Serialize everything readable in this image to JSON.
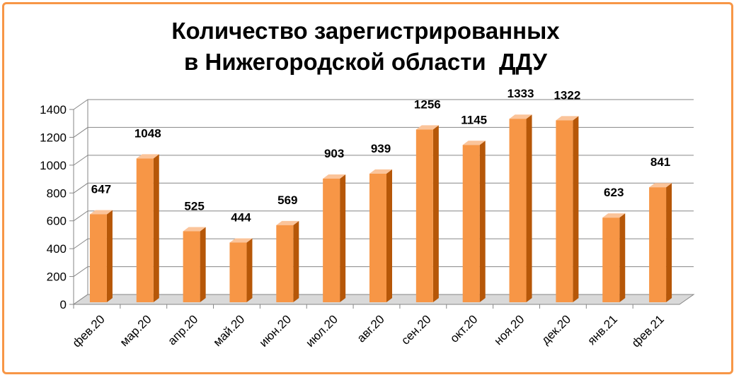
{
  "chart_data": {
    "type": "bar",
    "title_line1": "Количество зарегистрированных",
    "title_line2": "в Нижегородской области  ДДУ",
    "categories": [
      "фев.20",
      "мар.20",
      "апр.20",
      "май.20",
      "июн.20",
      "июл.20",
      "авг.20",
      "сен.20",
      "окт.20",
      "ноя.20",
      "дек.20",
      "янв.21",
      "фев.21"
    ],
    "values": [
      647,
      1048,
      525,
      444,
      569,
      903,
      939,
      1256,
      1145,
      1333,
      1322,
      623,
      841
    ],
    "data_labels": [
      "647",
      "1048",
      "525",
      "444",
      "569",
      "903",
      "939",
      "1256",
      "1145",
      "1333",
      "1322",
      "623",
      "841"
    ],
    "ylim": [
      0,
      1400
    ],
    "yticks": [
      0,
      200,
      400,
      600,
      800,
      1000,
      1200,
      1400
    ],
    "ytick_labels": [
      "0",
      "200",
      "400",
      "600",
      "800",
      "1000",
      "1200",
      "1400"
    ],
    "grid": true,
    "three_d": true,
    "xlabel": "",
    "ylabel": ""
  },
  "colors": {
    "border": "#f79646",
    "bar_front": "#f79646",
    "bar_side": "#b65708",
    "bar_top": "#fbc49a",
    "grid": "#868686",
    "floor": "#d9d9d9"
  }
}
